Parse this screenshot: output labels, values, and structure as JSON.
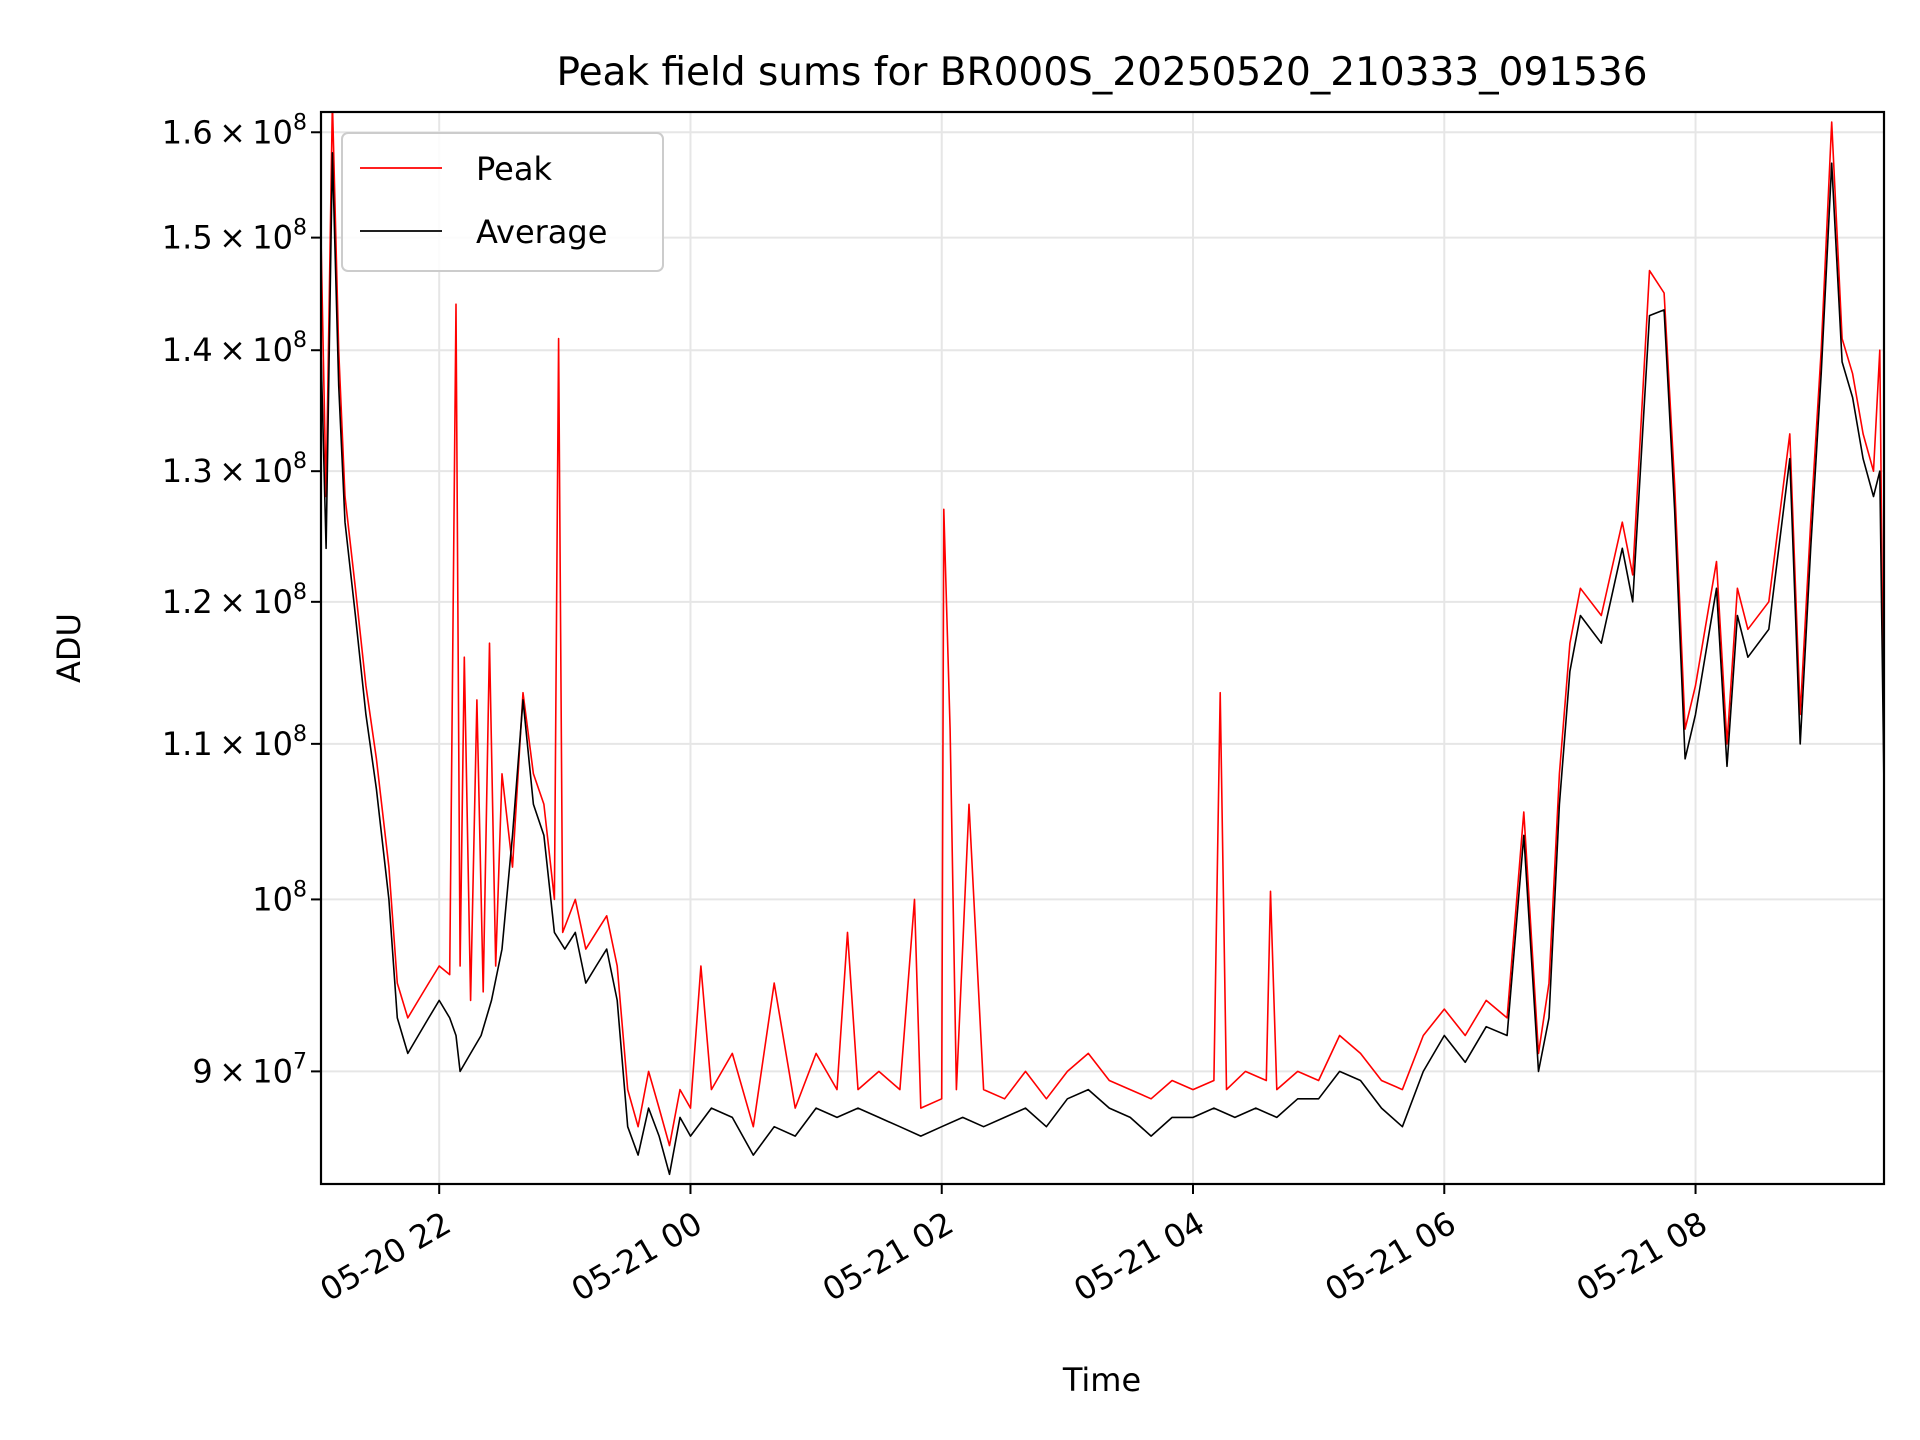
{
  "chart_data": {
    "type": "line",
    "title": "Peak field sums for BR000S_20250520_210333_091536",
    "xlabel": "Time",
    "ylabel": "ADU",
    "yscale": "log",
    "xlim": [
      "2025-05-20 21:03:33",
      "2025-05-21 09:30:00"
    ],
    "ylim": [
      84000000,
      162000000
    ],
    "grid": true,
    "legend": "top-left",
    "x_ticks": [
      {
        "t": "2025-05-20 22:00",
        "label": "05-20 22"
      },
      {
        "t": "2025-05-21 00:00",
        "label": "05-21 00"
      },
      {
        "t": "2025-05-21 02:00",
        "label": "05-21 02"
      },
      {
        "t": "2025-05-21 04:00",
        "label": "05-21 04"
      },
      {
        "t": "2025-05-21 06:00",
        "label": "05-21 06"
      },
      {
        "t": "2025-05-21 08:00",
        "label": "05-21 08"
      }
    ],
    "y_ticks": [
      {
        "v": 90000000,
        "mant": "9",
        "exp": "7"
      },
      {
        "v": 100000000,
        "mant": "",
        "exp": "8"
      },
      {
        "v": 110000000,
        "mant": "1.1",
        "exp": "8"
      },
      {
        "v": 120000000,
        "mant": "1.2",
        "exp": "8"
      },
      {
        "v": 130000000,
        "mant": "1.3",
        "exp": "8"
      },
      {
        "v": 140000000,
        "mant": "1.4",
        "exp": "8"
      },
      {
        "v": 150000000,
        "mant": "1.5",
        "exp": "8"
      },
      {
        "v": 160000000,
        "mant": "1.6",
        "exp": "8"
      }
    ],
    "series": [
      {
        "name": "Peak",
        "color": "#ff0000",
        "points": [
          [
            "2025-05-20 21:03:33",
            150000000
          ],
          [
            "2025-05-20 21:06",
            128000000
          ],
          [
            "2025-05-20 21:09",
            163000000
          ],
          [
            "2025-05-20 21:12",
            140000000
          ],
          [
            "2025-05-20 21:15",
            128000000
          ],
          [
            "2025-05-20 21:20",
            121000000
          ],
          [
            "2025-05-20 21:25",
            114000000
          ],
          [
            "2025-05-20 21:30",
            109000000
          ],
          [
            "2025-05-20 21:36",
            102000000
          ],
          [
            "2025-05-20 21:40",
            95000000
          ],
          [
            "2025-05-20 21:45",
            93000000
          ],
          [
            "2025-05-20 21:50",
            94000000
          ],
          [
            "2025-05-20 21:55",
            95000000
          ],
          [
            "2025-05-20 22:00",
            96000000
          ],
          [
            "2025-05-20 22:05",
            95500000
          ],
          [
            "2025-05-20 22:08",
            144000000
          ],
          [
            "2025-05-20 22:10",
            96000000
          ],
          [
            "2025-05-20 22:12",
            116000000
          ],
          [
            "2025-05-20 22:15",
            94000000
          ],
          [
            "2025-05-20 22:18",
            113000000
          ],
          [
            "2025-05-20 22:21",
            94500000
          ],
          [
            "2025-05-20 22:24",
            117000000
          ],
          [
            "2025-05-20 22:27",
            96000000
          ],
          [
            "2025-05-20 22:30",
            108000000
          ],
          [
            "2025-05-20 22:35",
            102000000
          ],
          [
            "2025-05-20 22:40",
            113500000
          ],
          [
            "2025-05-20 22:45",
            108000000
          ],
          [
            "2025-05-20 22:50",
            106000000
          ],
          [
            "2025-05-20 22:55",
            100000000
          ],
          [
            "2025-05-20 22:57",
            141000000
          ],
          [
            "2025-05-20 22:59",
            98000000
          ],
          [
            "2025-05-20 23:05",
            100000000
          ],
          [
            "2025-05-20 23:10",
            97000000
          ],
          [
            "2025-05-20 23:15",
            98000000
          ],
          [
            "2025-05-20 23:20",
            99000000
          ],
          [
            "2025-05-20 23:25",
            96000000
          ],
          [
            "2025-05-20 23:30",
            89000000
          ],
          [
            "2025-05-20 23:35",
            87000000
          ],
          [
            "2025-05-20 23:40",
            90000000
          ],
          [
            "2025-05-20 23:45",
            88000000
          ],
          [
            "2025-05-20 23:50",
            86000000
          ],
          [
            "2025-05-20 23:55",
            89000000
          ],
          [
            "2025-05-21 00:00",
            88000000
          ],
          [
            "2025-05-21 00:05",
            96000000
          ],
          [
            "2025-05-21 00:10",
            89000000
          ],
          [
            "2025-05-21 00:20",
            91000000
          ],
          [
            "2025-05-21 00:30",
            87000000
          ],
          [
            "2025-05-21 00:40",
            95000000
          ],
          [
            "2025-05-21 00:50",
            88000000
          ],
          [
            "2025-05-21 01:00",
            91000000
          ],
          [
            "2025-05-21 01:10",
            89000000
          ],
          [
            "2025-05-21 01:15",
            98000000
          ],
          [
            "2025-05-21 01:20",
            89000000
          ],
          [
            "2025-05-21 01:30",
            90000000
          ],
          [
            "2025-05-21 01:40",
            89000000
          ],
          [
            "2025-05-21 01:47",
            100000000
          ],
          [
            "2025-05-21 01:50",
            88000000
          ],
          [
            "2025-05-21 02:00",
            88500000
          ],
          [
            "2025-05-21 02:01",
            127000000
          ],
          [
            "2025-05-21 02:04",
            111000000
          ],
          [
            "2025-05-21 02:07",
            89000000
          ],
          [
            "2025-05-21 02:13",
            106000000
          ],
          [
            "2025-05-21 02:20",
            89000000
          ],
          [
            "2025-05-21 02:30",
            88500000
          ],
          [
            "2025-05-21 02:40",
            90000000
          ],
          [
            "2025-05-21 02:50",
            88500000
          ],
          [
            "2025-05-21 03:00",
            90000000
          ],
          [
            "2025-05-21 03:10",
            91000000
          ],
          [
            "2025-05-21 03:20",
            89500000
          ],
          [
            "2025-05-21 03:30",
            89000000
          ],
          [
            "2025-05-21 03:40",
            88500000
          ],
          [
            "2025-05-21 03:50",
            89500000
          ],
          [
            "2025-05-21 04:00",
            89000000
          ],
          [
            "2025-05-21 04:10",
            89500000
          ],
          [
            "2025-05-21 04:13",
            113500000
          ],
          [
            "2025-05-21 04:16",
            89000000
          ],
          [
            "2025-05-21 04:25",
            90000000
          ],
          [
            "2025-05-21 04:35",
            89500000
          ],
          [
            "2025-05-21 04:37",
            100500000
          ],
          [
            "2025-05-21 04:40",
            89000000
          ],
          [
            "2025-05-21 04:50",
            90000000
          ],
          [
            "2025-05-21 05:00",
            89500000
          ],
          [
            "2025-05-21 05:10",
            92000000
          ],
          [
            "2025-05-21 05:20",
            91000000
          ],
          [
            "2025-05-21 05:30",
            89500000
          ],
          [
            "2025-05-21 05:40",
            89000000
          ],
          [
            "2025-05-21 05:50",
            92000000
          ],
          [
            "2025-05-21 06:00",
            93500000
          ],
          [
            "2025-05-21 06:10",
            92000000
          ],
          [
            "2025-05-21 06:20",
            94000000
          ],
          [
            "2025-05-21 06:30",
            93000000
          ],
          [
            "2025-05-21 06:38",
            105500000
          ],
          [
            "2025-05-21 06:45",
            91000000
          ],
          [
            "2025-05-21 06:50",
            95000000
          ],
          [
            "2025-05-21 06:55",
            108000000
          ],
          [
            "2025-05-21 07:00",
            117000000
          ],
          [
            "2025-05-21 07:05",
            121000000
          ],
          [
            "2025-05-21 07:15",
            119000000
          ],
          [
            "2025-05-21 07:25",
            126000000
          ],
          [
            "2025-05-21 07:30",
            122000000
          ],
          [
            "2025-05-21 07:38",
            147000000
          ],
          [
            "2025-05-21 07:45",
            145000000
          ],
          [
            "2025-05-21 07:50",
            129000000
          ],
          [
            "2025-05-21 07:55",
            111000000
          ],
          [
            "2025-05-21 08:00",
            114000000
          ],
          [
            "2025-05-21 08:10",
            123000000
          ],
          [
            "2025-05-21 08:15",
            110000000
          ],
          [
            "2025-05-21 08:20",
            121000000
          ],
          [
            "2025-05-21 08:25",
            118000000
          ],
          [
            "2025-05-21 08:35",
            120000000
          ],
          [
            "2025-05-21 08:45",
            133000000
          ],
          [
            "2025-05-21 08:50",
            112000000
          ],
          [
            "2025-05-21 08:55",
            126000000
          ],
          [
            "2025-05-21 09:00",
            140000000
          ],
          [
            "2025-05-21 09:05",
            161000000
          ],
          [
            "2025-05-21 09:10",
            141000000
          ],
          [
            "2025-05-21 09:15",
            138000000
          ],
          [
            "2025-05-21 09:20",
            133000000
          ],
          [
            "2025-05-21 09:25",
            130000000
          ],
          [
            "2025-05-21 09:28",
            140000000
          ],
          [
            "2025-05-21 09:30",
            108000000
          ]
        ]
      },
      {
        "name": "Average",
        "color": "#000000",
        "points": [
          [
            "2025-05-20 21:03:33",
            140000000
          ],
          [
            "2025-05-20 21:06",
            124000000
          ],
          [
            "2025-05-20 21:09",
            158000000
          ],
          [
            "2025-05-20 21:12",
            137000000
          ],
          [
            "2025-05-20 21:15",
            126000000
          ],
          [
            "2025-05-20 21:20",
            119000000
          ],
          [
            "2025-05-20 21:25",
            112000000
          ],
          [
            "2025-05-20 21:30",
            107000000
          ],
          [
            "2025-05-20 21:36",
            100000000
          ],
          [
            "2025-05-20 21:40",
            93000000
          ],
          [
            "2025-05-20 21:45",
            91000000
          ],
          [
            "2025-05-20 21:50",
            92000000
          ],
          [
            "2025-05-20 21:55",
            93000000
          ],
          [
            "2025-05-20 22:00",
            94000000
          ],
          [
            "2025-05-20 22:05",
            93000000
          ],
          [
            "2025-05-20 22:08",
            92000000
          ],
          [
            "2025-05-20 22:10",
            90000000
          ],
          [
            "2025-05-20 22:15",
            91000000
          ],
          [
            "2025-05-20 22:20",
            92000000
          ],
          [
            "2025-05-20 22:25",
            94000000
          ],
          [
            "2025-05-20 22:30",
            97000000
          ],
          [
            "2025-05-20 22:35",
            104000000
          ],
          [
            "2025-05-20 22:40",
            113000000
          ],
          [
            "2025-05-20 22:45",
            106000000
          ],
          [
            "2025-05-20 22:50",
            104000000
          ],
          [
            "2025-05-20 22:55",
            98000000
          ],
          [
            "2025-05-20 23:00",
            97000000
          ],
          [
            "2025-05-20 23:05",
            98000000
          ],
          [
            "2025-05-20 23:10",
            95000000
          ],
          [
            "2025-05-20 23:15",
            96000000
          ],
          [
            "2025-05-20 23:20",
            97000000
          ],
          [
            "2025-05-20 23:25",
            94000000
          ],
          [
            "2025-05-20 23:30",
            87000000
          ],
          [
            "2025-05-20 23:35",
            85500000
          ],
          [
            "2025-05-20 23:40",
            88000000
          ],
          [
            "2025-05-20 23:45",
            86500000
          ],
          [
            "2025-05-20 23:50",
            84500000
          ],
          [
            "2025-05-20 23:55",
            87500000
          ],
          [
            "2025-05-21 00:00",
            86500000
          ],
          [
            "2025-05-21 00:10",
            88000000
          ],
          [
            "2025-05-21 00:20",
            87500000
          ],
          [
            "2025-05-21 00:30",
            85500000
          ],
          [
            "2025-05-21 00:40",
            87000000
          ],
          [
            "2025-05-21 00:50",
            86500000
          ],
          [
            "2025-05-21 01:00",
            88000000
          ],
          [
            "2025-05-21 01:10",
            87500000
          ],
          [
            "2025-05-21 01:20",
            88000000
          ],
          [
            "2025-05-21 01:30",
            87500000
          ],
          [
            "2025-05-21 01:40",
            87000000
          ],
          [
            "2025-05-21 01:50",
            86500000
          ],
          [
            "2025-05-21 02:00",
            87000000
          ],
          [
            "2025-05-21 02:10",
            87500000
          ],
          [
            "2025-05-21 02:20",
            87000000
          ],
          [
            "2025-05-21 02:30",
            87500000
          ],
          [
            "2025-05-21 02:40",
            88000000
          ],
          [
            "2025-05-21 02:50",
            87000000
          ],
          [
            "2025-05-21 03:00",
            88500000
          ],
          [
            "2025-05-21 03:10",
            89000000
          ],
          [
            "2025-05-21 03:20",
            88000000
          ],
          [
            "2025-05-21 03:30",
            87500000
          ],
          [
            "2025-05-21 03:40",
            86500000
          ],
          [
            "2025-05-21 03:50",
            87500000
          ],
          [
            "2025-05-21 04:00",
            87500000
          ],
          [
            "2025-05-21 04:10",
            88000000
          ],
          [
            "2025-05-21 04:20",
            87500000
          ],
          [
            "2025-05-21 04:30",
            88000000
          ],
          [
            "2025-05-21 04:40",
            87500000
          ],
          [
            "2025-05-21 04:50",
            88500000
          ],
          [
            "2025-05-21 05:00",
            88500000
          ],
          [
            "2025-05-21 05:10",
            90000000
          ],
          [
            "2025-05-21 05:20",
            89500000
          ],
          [
            "2025-05-21 05:30",
            88000000
          ],
          [
            "2025-05-21 05:40",
            87000000
          ],
          [
            "2025-05-21 05:50",
            90000000
          ],
          [
            "2025-05-21 06:00",
            92000000
          ],
          [
            "2025-05-21 06:10",
            90500000
          ],
          [
            "2025-05-21 06:20",
            92500000
          ],
          [
            "2025-05-21 06:30",
            92000000
          ],
          [
            "2025-05-21 06:38",
            104000000
          ],
          [
            "2025-05-21 06:45",
            90000000
          ],
          [
            "2025-05-21 06:50",
            93000000
          ],
          [
            "2025-05-21 06:55",
            106000000
          ],
          [
            "2025-05-21 07:00",
            115000000
          ],
          [
            "2025-05-21 07:05",
            119000000
          ],
          [
            "2025-05-21 07:15",
            117000000
          ],
          [
            "2025-05-21 07:25",
            124000000
          ],
          [
            "2025-05-21 07:30",
            120000000
          ],
          [
            "2025-05-21 07:38",
            143000000
          ],
          [
            "2025-05-21 07:45",
            143500000
          ],
          [
            "2025-05-21 07:50",
            127000000
          ],
          [
            "2025-05-21 07:55",
            109000000
          ],
          [
            "2025-05-21 08:00",
            112000000
          ],
          [
            "2025-05-21 08:10",
            121000000
          ],
          [
            "2025-05-21 08:15",
            108500000
          ],
          [
            "2025-05-21 08:20",
            119000000
          ],
          [
            "2025-05-21 08:25",
            116000000
          ],
          [
            "2025-05-21 08:35",
            118000000
          ],
          [
            "2025-05-21 08:45",
            131000000
          ],
          [
            "2025-05-21 08:50",
            110000000
          ],
          [
            "2025-05-21 08:55",
            124000000
          ],
          [
            "2025-05-21 09:00",
            138000000
          ],
          [
            "2025-05-21 09:05",
            157000000
          ],
          [
            "2025-05-21 09:10",
            139000000
          ],
          [
            "2025-05-21 09:15",
            136000000
          ],
          [
            "2025-05-21 09:20",
            131000000
          ],
          [
            "2025-05-21 09:25",
            128000000
          ],
          [
            "2025-05-21 09:28",
            130000000
          ],
          [
            "2025-05-21 09:30",
            107000000
          ]
        ]
      }
    ]
  }
}
